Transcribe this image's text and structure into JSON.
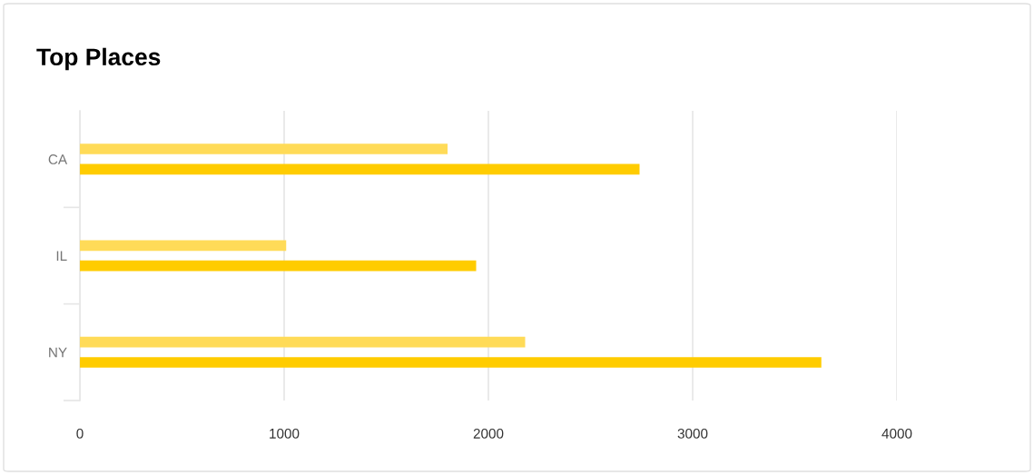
{
  "chart_data": {
    "type": "bar",
    "orientation": "horizontal",
    "title": "Top Places",
    "categories": [
      "CA",
      "IL",
      "NY"
    ],
    "series": [
      {
        "color": "#ffdb58",
        "values": [
          1800,
          1010,
          2180
        ]
      },
      {
        "color": "#ffcc00",
        "values": [
          2740,
          1940,
          3630
        ]
      }
    ],
    "xlim": [
      0,
      4000
    ],
    "xticks": [
      0,
      1000,
      2000,
      3000,
      4000
    ],
    "grid": "x",
    "legend": false
  }
}
